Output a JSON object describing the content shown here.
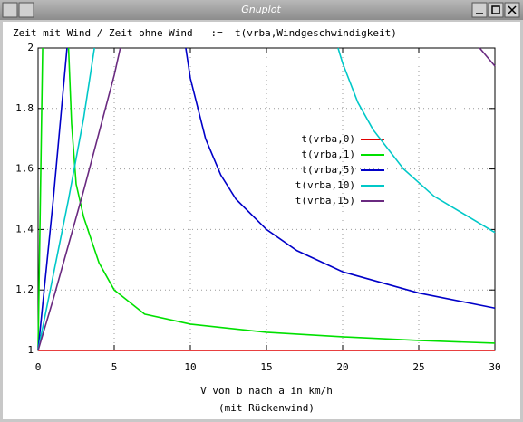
{
  "window_title": "Gnuplot",
  "chart_data": {
    "type": "line",
    "title": "Zeit mit Wind / Zeit ohne Wind   :=  t(vrba,Windgeschwindigkeit)",
    "xlabel": [
      "V von b nach a in km/h",
      "(mit Rückenwind)"
    ],
    "xlim": [
      0,
      30
    ],
    "ylim": [
      1,
      2
    ],
    "xticks": [
      0,
      5,
      10,
      15,
      20,
      25,
      30
    ],
    "yticks": [
      1,
      1.2,
      1.4,
      1.6,
      1.8,
      2
    ],
    "grid": true,
    "legend": "right",
    "series": [
      {
        "name": "t(vrba,0)",
        "color": "#e00000",
        "x": [
          0,
          30
        ],
        "values": [
          1,
          1
        ]
      },
      {
        "name": "t(vrba,1)",
        "color": "#00e000",
        "x": [
          0,
          0.3,
          null,
          2,
          2.2,
          2.5,
          3,
          4,
          5,
          7,
          10,
          15,
          20,
          25,
          30
        ],
        "values": [
          1,
          2,
          null,
          2,
          1.75,
          1.55,
          1.44,
          1.29,
          1.2,
          1.12,
          1.087,
          1.06,
          1.045,
          1.033,
          1.024
        ]
      },
      {
        "name": "t(vrba,5)",
        "color": "#0000c8",
        "x": [
          0,
          1,
          1.9,
          null,
          9.7,
          10,
          11,
          12,
          13,
          15,
          17,
          20,
          25,
          30
        ],
        "values": [
          1,
          1.5,
          2,
          null,
          2,
          1.9,
          1.7,
          1.58,
          1.5,
          1.4,
          1.33,
          1.26,
          1.19,
          1.14
        ]
      },
      {
        "name": "t(vrba,10)",
        "color": "#00c8c8",
        "x": [
          0,
          1,
          2,
          3,
          3.7,
          null,
          19.7,
          20,
          21,
          22,
          24,
          26,
          28,
          30
        ],
        "values": [
          1,
          1.25,
          1.5,
          1.77,
          2,
          null,
          2,
          1.95,
          1.82,
          1.73,
          1.6,
          1.51,
          1.45,
          1.39
        ]
      },
      {
        "name": "t(vrba,15)",
        "color": "#6a2a80",
        "x": [
          0,
          1,
          2,
          3,
          4,
          5,
          5.4,
          null,
          29,
          30
        ],
        "values": [
          1,
          1.17,
          1.35,
          1.53,
          1.72,
          1.91,
          2,
          null,
          2,
          1.94
        ]
      }
    ]
  }
}
